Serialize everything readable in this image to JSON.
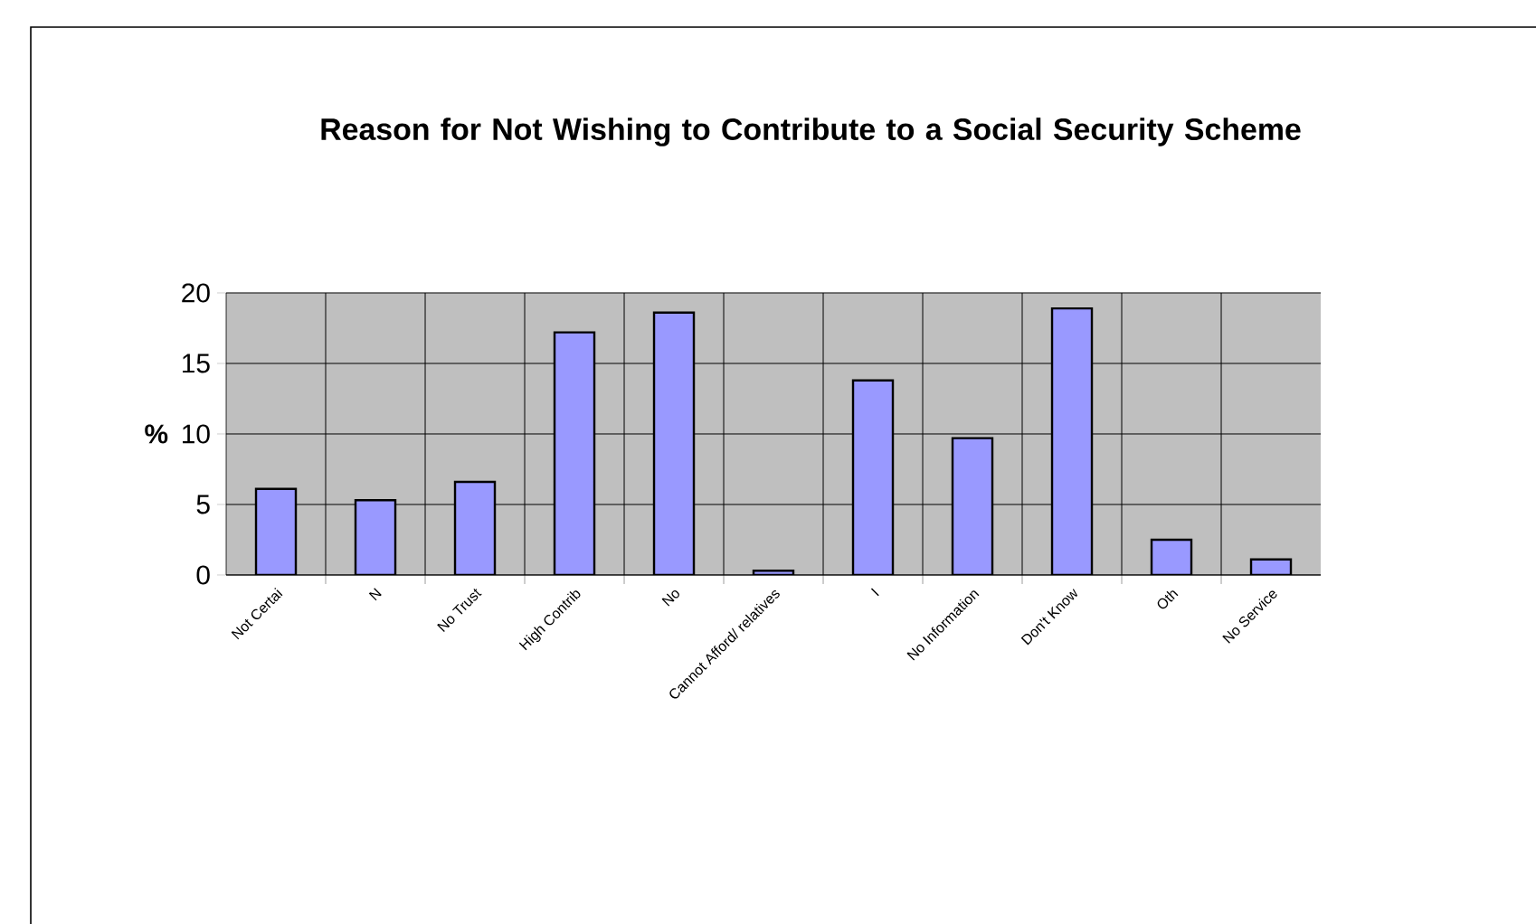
{
  "chart_data": {
    "type": "bar",
    "title": "Reason for Not Wishing to Contribute to a Social Security Scheme",
    "ylabel": "%",
    "categories": [
      "Not Certai",
      "N",
      "No Trust",
      "High Contrib",
      "No",
      "Cannot Afford/ relatives",
      "I",
      "No Information",
      "Don't Know",
      "Oth",
      "No Service"
    ],
    "values": [
      6.1,
      5.3,
      6.6,
      17.2,
      18.6,
      0.3,
      13.8,
      9.7,
      18.9,
      2.5,
      1.1
    ],
    "color": "#9999ff",
    "ylim": [
      0,
      20
    ],
    "yticks": [
      0,
      5,
      10,
      15,
      20
    ],
    "grid": true
  }
}
